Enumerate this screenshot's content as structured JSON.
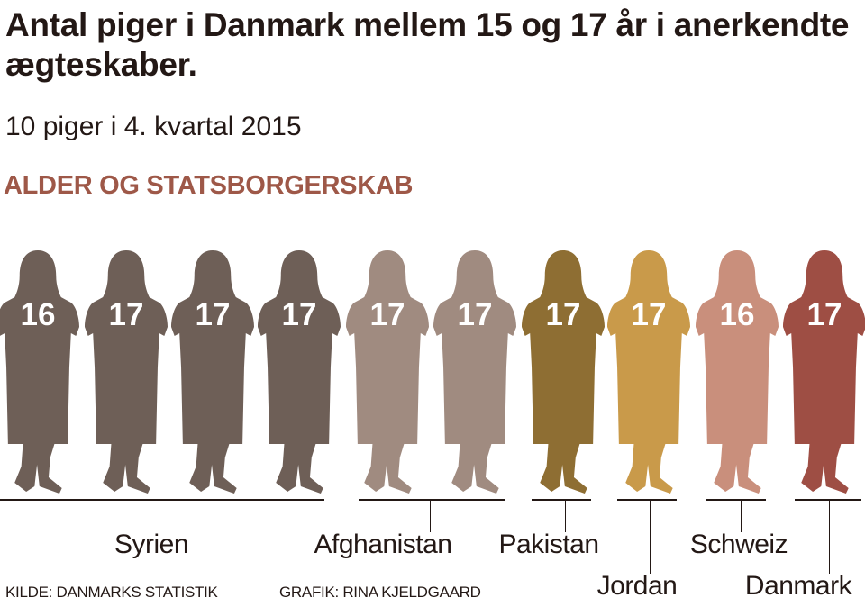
{
  "title": "Antal piger i Danmark mellem 15 og 17 år i anerkendte ægteskaber.",
  "subtitle": "10 piger i 4. kvartal 2015",
  "section": "ALDER OG STATSBORGERSKAB",
  "source": "KILDE: DANMARKS STATISTIK",
  "credit": "GRAFIK: RINA KJELDGAARD",
  "chart_data": {
    "type": "pictograph",
    "title": "Antal piger i Danmark mellem 15 og 17 år i anerkendte ægteskaber.",
    "total": 10,
    "girls": [
      {
        "age": "16",
        "country": "Syrien",
        "color": "#6e5f57"
      },
      {
        "age": "17",
        "country": "Syrien",
        "color": "#6e5f57"
      },
      {
        "age": "17",
        "country": "Syrien",
        "color": "#6e5f57"
      },
      {
        "age": "17",
        "country": "Syrien",
        "color": "#6e5f57"
      },
      {
        "age": "17",
        "country": "Afghanistan",
        "color": "#a08b80"
      },
      {
        "age": "17",
        "country": "Afghanistan",
        "color": "#a08b80"
      },
      {
        "age": "17",
        "country": "Pakistan",
        "color": "#8e6e33"
      },
      {
        "age": "17",
        "country": "Jordan",
        "color": "#c99a4a"
      },
      {
        "age": "16",
        "country": "Schweiz",
        "color": "#c98f7c"
      },
      {
        "age": "17",
        "country": "Danmark",
        "color": "#9e4e44"
      }
    ],
    "groups": [
      {
        "country": "Syrien",
        "count": 4
      },
      {
        "country": "Afghanistan",
        "count": 2
      },
      {
        "country": "Pakistan",
        "count": 1
      },
      {
        "country": "Jordan",
        "count": 1
      },
      {
        "country": "Schweiz",
        "count": 1
      },
      {
        "country": "Danmark",
        "count": 1
      }
    ]
  }
}
